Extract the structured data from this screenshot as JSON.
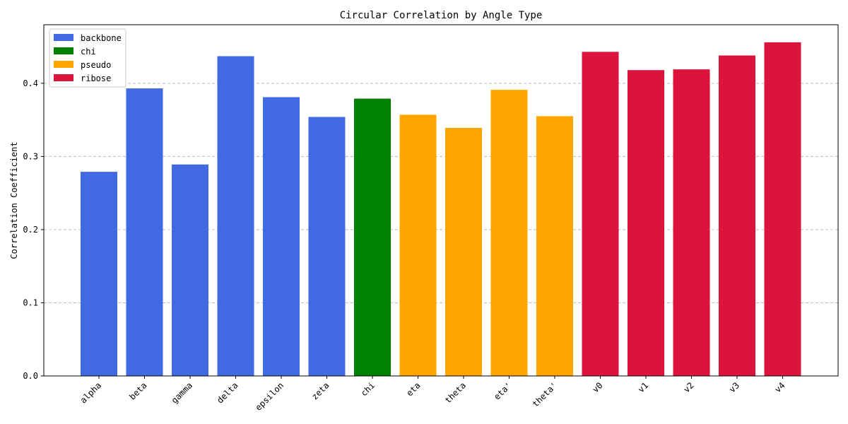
{
  "chart_data": {
    "type": "bar",
    "title": "Circular Correlation by Angle Type",
    "xlabel": "",
    "ylabel": "Correlation Coefficient",
    "ylim": [
      0,
      0.48
    ],
    "yticks": [
      0.0,
      0.1,
      0.2,
      0.3,
      0.4
    ],
    "ytick_labels": [
      "0.0",
      "0.1",
      "0.2",
      "0.3",
      "0.4"
    ],
    "grid": "y-dashed",
    "legend_position": "top-left",
    "groups": [
      {
        "name": "backbone",
        "color": "#4169E1"
      },
      {
        "name": "chi",
        "color": "#008000"
      },
      {
        "name": "pseudo",
        "color": "#FFA500"
      },
      {
        "name": "ribose",
        "color": "#DC143C"
      }
    ],
    "categories": [
      "alpha",
      "beta",
      "gamma",
      "delta",
      "epsilon",
      "zeta",
      "chi",
      "eta",
      "theta",
      "eta'",
      "theta'",
      "v0",
      "v1",
      "v2",
      "v3",
      "v4"
    ],
    "values": [
      0.279,
      0.393,
      0.289,
      0.437,
      0.381,
      0.354,
      0.379,
      0.357,
      0.339,
      0.391,
      0.355,
      0.443,
      0.418,
      0.419,
      0.438,
      0.456
    ],
    "bar_groups": [
      "backbone",
      "backbone",
      "backbone",
      "backbone",
      "backbone",
      "backbone",
      "chi",
      "pseudo",
      "pseudo",
      "pseudo",
      "pseudo",
      "ribose",
      "ribose",
      "ribose",
      "ribose",
      "ribose"
    ]
  }
}
